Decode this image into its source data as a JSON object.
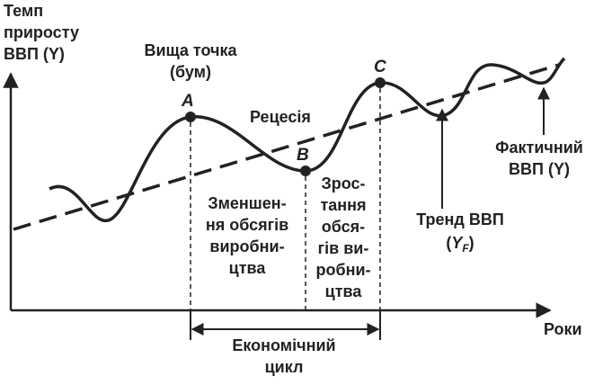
{
  "axes": {
    "y_label": [
      "Темп",
      "приросту",
      "ВВП (Y)"
    ],
    "x_label": "Роки"
  },
  "points": {
    "A": "A",
    "B": "B",
    "C": "C"
  },
  "labels": {
    "peak": [
      "Вища точка",
      "(бум)"
    ],
    "recession": "Рецесія",
    "decline": [
      "Зменшен-",
      "ня обсягів",
      "виробни-",
      "цтва"
    ],
    "growth": [
      "Зрос-",
      "тання",
      "обся-",
      "гів ви-",
      "робни-",
      "цтва"
    ],
    "trend": {
      "line1": "Тренд ВВП",
      "line2": [
        "(",
        "Y",
        "F",
        ")"
      ]
    },
    "actual": [
      "Фактичний",
      "ВВП (Y)"
    ],
    "cycle": [
      "Економічний",
      "цикл"
    ]
  }
}
